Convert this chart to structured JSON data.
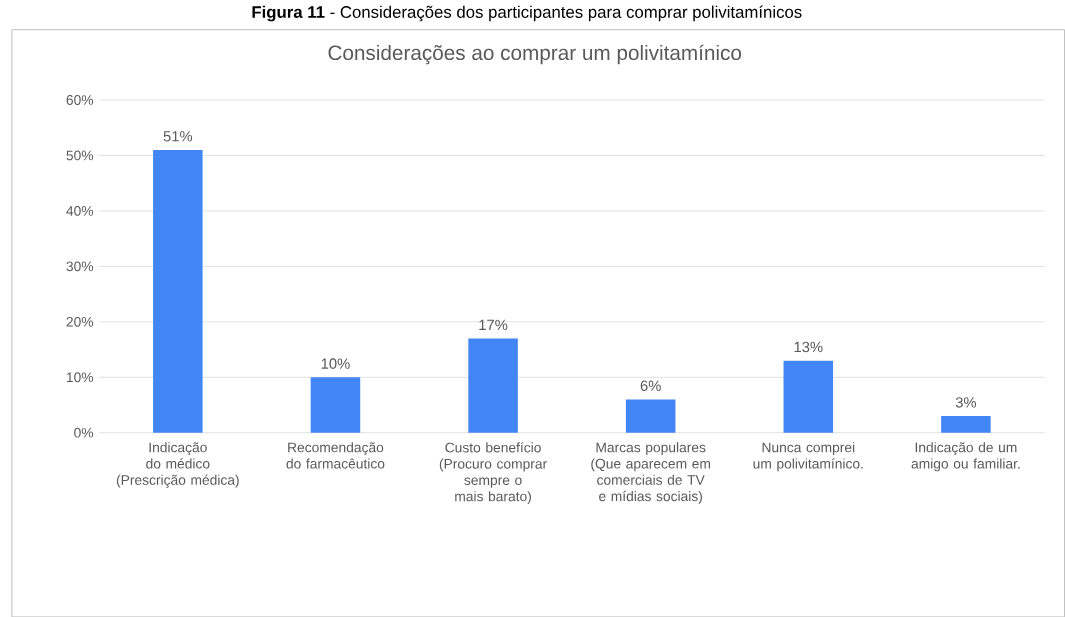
{
  "chart_data": {
    "type": "bar",
    "title": "Considerações ao comprar um polivitamínico",
    "annotations": [
      "**Figura 11** - Considerações dos participantes para comprar polivitamínicos"
    ],
    "categories": [
      "Indicação do médico (Prescrição médica)",
      "Recomendação do farmacêutico",
      "Custo benefício (Procuro comprar sempre o mais barato)",
      "Marcas populares (Que aparecem em comerciais de TV e mídias sociais)",
      "Nunca comprei um polivitamínico.",
      "Indicação de um amigo ou familiar."
    ],
    "values": [
      51,
      10,
      17,
      6,
      13,
      3
    ],
    "value_labels": [
      "51%",
      "10%",
      "17%",
      "6%",
      "13%",
      "3%"
    ],
    "color": "#4285f4",
    "ylim": [
      0,
      60
    ],
    "yticks": [
      {
        "value": 0,
        "label": "0%"
      },
      {
        "value": 10,
        "label": "10%"
      },
      {
        "value": 20,
        "label": "20%"
      },
      {
        "value": 30,
        "label": "30%"
      },
      {
        "value": 40,
        "label": "40%"
      },
      {
        "value": 50,
        "label": "50%"
      },
      {
        "value": 60,
        "label": "60%"
      }
    ],
    "grid": "y"
  }
}
